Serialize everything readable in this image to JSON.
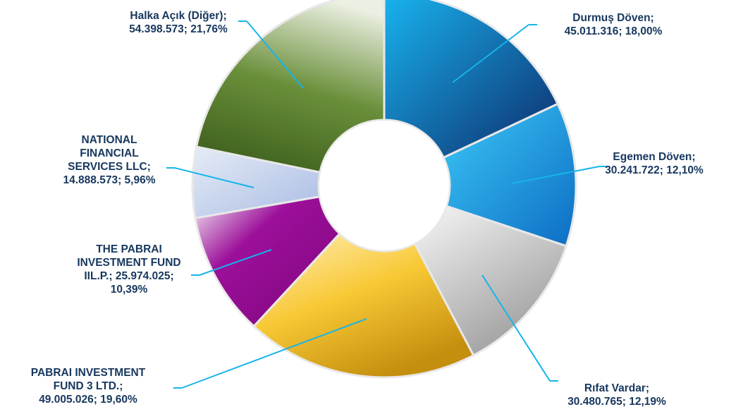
{
  "chart_data": {
    "type": "pie",
    "donut": true,
    "slices": [
      {
        "name": "Durmuş Döven",
        "value": 45011316,
        "percent": 18.0,
        "label_lines": [
          "Durmuş Döven;",
          "45.011.316; 18,00%"
        ],
        "colors": [
          "#18b4ef",
          "#0e2b6b"
        ]
      },
      {
        "name": "Egemen Döven",
        "value": 30241722,
        "percent": 12.1,
        "label_lines": [
          "Egemen Döven;",
          "30.241.722; 12,10%"
        ],
        "colors": [
          "#3cc8f7",
          "#0d6dc4"
        ]
      },
      {
        "name": "Rıfat Vardar",
        "value": 30480765,
        "percent": 12.19,
        "label_lines": [
          "Rıfat Vardar;",
          "30.480.765; 12,19%"
        ],
        "colors": [
          "#f7f7f7",
          "#9d9d9d"
        ]
      },
      {
        "name": "PABRAI INVESTMENT FUND 3 LTD.",
        "value": 49005026,
        "percent": 19.6,
        "label_lines": [
          "PABRAI INVESTMENT",
          "FUND 3 LTD.;",
          "49.005.026; 19,60%"
        ],
        "colors": [
          "#fff1bd",
          "#f8c835",
          "#c48e0e"
        ]
      },
      {
        "name": "THE PABRAI INVESTMENT FUND IIL.P.",
        "value": 25974025,
        "percent": 10.39,
        "label_lines": [
          "THE PABRAI",
          "INVESTMENT FUND",
          "IIL.P.; 25.974.025;",
          "10,39%"
        ],
        "colors": [
          "#f3eef3",
          "#9c0f9a",
          "#8c0a8a"
        ]
      },
      {
        "name": "NATIONAL FINANCIAL SERVICES LLC",
        "value": 14888573,
        "percent": 5.96,
        "label_lines": [
          "NATIONAL",
          "FINANCIAL",
          "SERVICES LLC;",
          "14.888.573; 5,96%"
        ],
        "colors": [
          "#e6ecf7",
          "#a9bce3"
        ]
      },
      {
        "name": "Halka Açık (Diğer)",
        "value": 54398573,
        "percent": 21.76,
        "label_lines": [
          "Halka Açık (Diğer);",
          "54.398.573; 21,76%"
        ],
        "colors": [
          "#ecf0e3",
          "#6a8f3a",
          "#3d5f1d"
        ]
      }
    ]
  }
}
